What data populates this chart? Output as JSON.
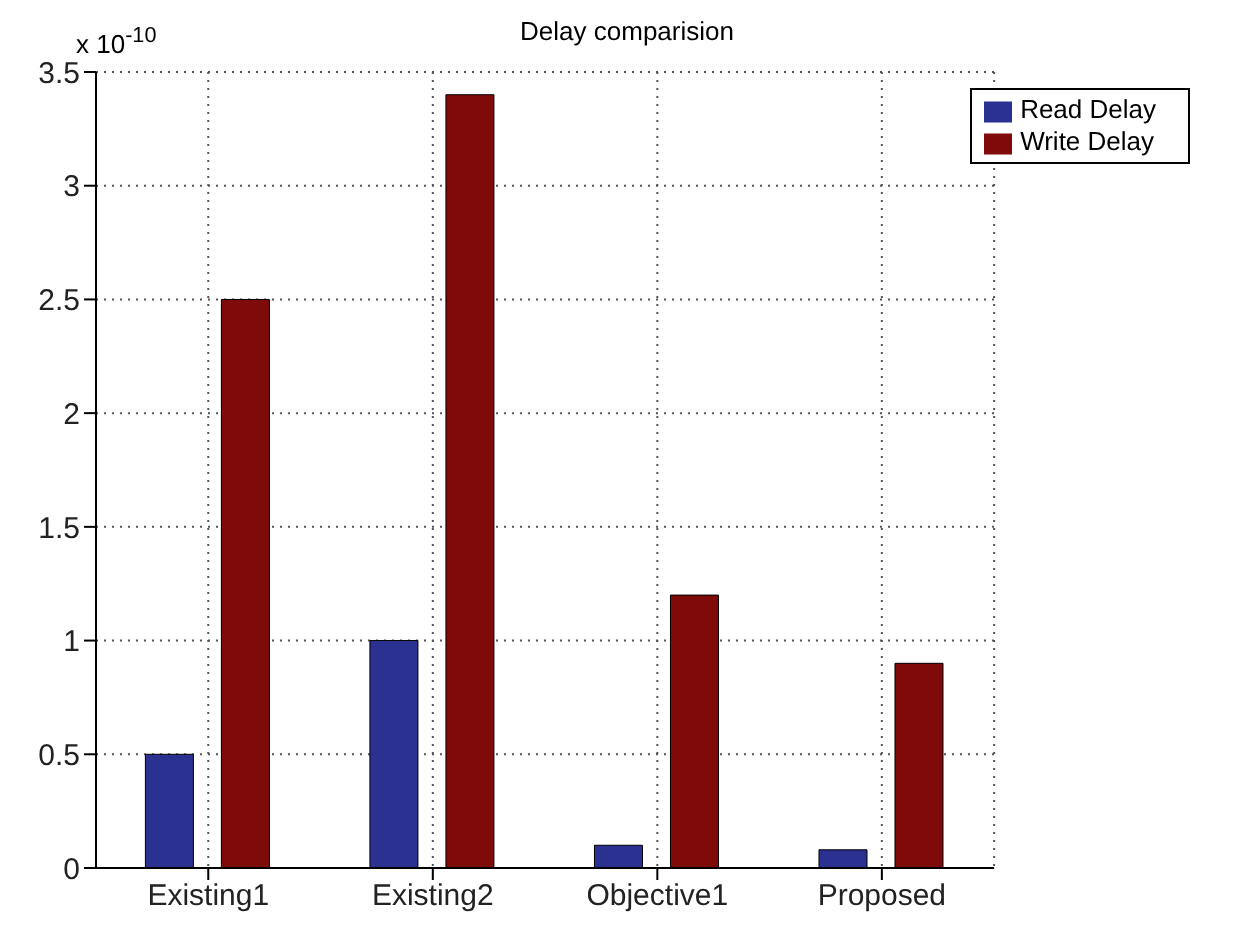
{
  "chart_data": {
    "type": "bar",
    "title": "Delay comparision",
    "categories": [
      "Existing1",
      "Existing2",
      "Objective1",
      "Proposed"
    ],
    "series": [
      {
        "name": "Read Delay",
        "color": "#2b3191",
        "values": [
          0.5,
          1.0,
          0.1,
          0.08
        ]
      },
      {
        "name": "Write Delay",
        "color": "#7f0a0a",
        "values": [
          2.5,
          3.4,
          1.2,
          0.9
        ]
      }
    ],
    "ylim": [
      0,
      3.5
    ],
    "yticks": [
      0,
      0.5,
      1,
      1.5,
      2,
      2.5,
      3,
      3.5
    ],
    "grid": true,
    "legend": "top right",
    "annotations": [
      "x 10$^{-10}$"
    ]
  }
}
